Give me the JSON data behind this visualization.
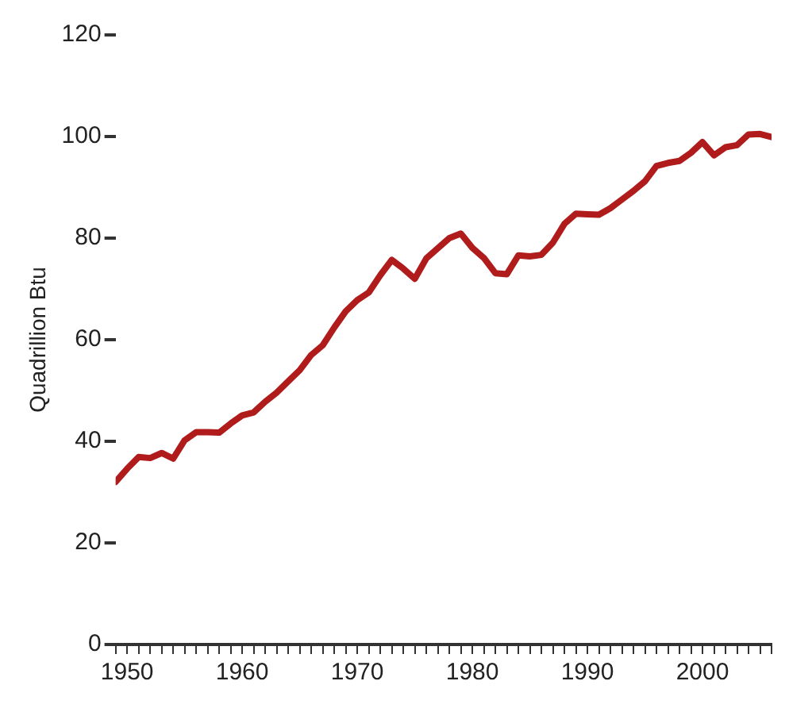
{
  "chart_data": {
    "type": "line",
    "ylabel": "Quadrillion Btu",
    "x": [
      1949,
      1950,
      1951,
      1952,
      1953,
      1954,
      1955,
      1956,
      1957,
      1958,
      1959,
      1960,
      1961,
      1962,
      1963,
      1964,
      1965,
      1966,
      1967,
      1968,
      1969,
      1970,
      1971,
      1972,
      1973,
      1974,
      1975,
      1976,
      1977,
      1978,
      1979,
      1980,
      1981,
      1982,
      1983,
      1984,
      1985,
      1986,
      1987,
      1988,
      1989,
      1990,
      1991,
      1992,
      1993,
      1994,
      1995,
      1996,
      1997,
      1998,
      1999,
      2000,
      2001,
      2002,
      2003,
      2004,
      2005,
      2006
    ],
    "series": [
      {
        "color": "#b01c1c",
        "values": [
          32.0,
          34.6,
          36.9,
          36.7,
          37.7,
          36.6,
          40.2,
          41.8,
          41.8,
          41.7,
          43.5,
          45.1,
          45.7,
          47.8,
          49.6,
          51.8,
          54.0,
          57.0,
          58.9,
          62.4,
          65.6,
          67.8,
          69.3,
          72.7,
          75.7,
          74.0,
          72.0,
          76.0,
          78.0,
          80.0,
          80.9,
          78.1,
          76.1,
          73.1,
          72.9,
          76.6,
          76.4,
          76.7,
          79.1,
          82.8,
          84.8,
          84.7,
          84.6,
          85.9,
          87.6,
          89.3,
          91.2,
          94.2,
          94.8,
          95.2,
          96.8,
          98.9,
          96.3,
          97.9,
          98.3,
          100.4,
          100.5,
          99.9
        ]
      }
    ],
    "xlim": [
      1949,
      2006
    ],
    "xticks": [
      {
        "value": 1949,
        "label": null
      },
      1950,
      {
        "value": 1951,
        "label": null
      },
      {
        "value": 1952,
        "label": null
      },
      {
        "value": 1953,
        "label": null
      },
      {
        "value": 1954,
        "label": null
      },
      {
        "value": 1955,
        "label": null
      },
      {
        "value": 1956,
        "label": null
      },
      {
        "value": 1957,
        "label": null
      },
      {
        "value": 1958,
        "label": null
      },
      {
        "value": 1959,
        "label": null
      },
      1960,
      {
        "value": 1961,
        "label": null
      },
      {
        "value": 1962,
        "label": null
      },
      {
        "value": 1963,
        "label": null
      },
      {
        "value": 1964,
        "label": null
      },
      {
        "value": 1965,
        "label": null
      },
      {
        "value": 1966,
        "label": null
      },
      {
        "value": 1967,
        "label": null
      },
      {
        "value": 1968,
        "label": null
      },
      {
        "value": 1969,
        "label": null
      },
      1970,
      {
        "value": 1971,
        "label": null
      },
      {
        "value": 1972,
        "label": null
      },
      {
        "value": 1973,
        "label": null
      },
      {
        "value": 1974,
        "label": null
      },
      {
        "value": 1975,
        "label": null
      },
      {
        "value": 1976,
        "label": null
      },
      {
        "value": 1977,
        "label": null
      },
      {
        "value": 1978,
        "label": null
      },
      {
        "value": 1979,
        "label": null
      },
      1980,
      {
        "value": 1981,
        "label": null
      },
      {
        "value": 1982,
        "label": null
      },
      {
        "value": 1983,
        "label": null
      },
      {
        "value": 1984,
        "label": null
      },
      {
        "value": 1985,
        "label": null
      },
      {
        "value": 1986,
        "label": null
      },
      {
        "value": 1987,
        "label": null
      },
      {
        "value": 1988,
        "label": null
      },
      {
        "value": 1989,
        "label": null
      },
      1990,
      {
        "value": 1991,
        "label": null
      },
      {
        "value": 1992,
        "label": null
      },
      {
        "value": 1993,
        "label": null
      },
      {
        "value": 1994,
        "label": null
      },
      {
        "value": 1995,
        "label": null
      },
      {
        "value": 1996,
        "label": null
      },
      {
        "value": 1997,
        "label": null
      },
      {
        "value": 1998,
        "label": null
      },
      {
        "value": 1999,
        "label": null
      },
      2000,
      {
        "value": 2001,
        "label": null
      },
      {
        "value": 2002,
        "label": null
      },
      {
        "value": 2003,
        "label": null
      },
      {
        "value": 2004,
        "label": null
      },
      {
        "value": 2005,
        "label": null
      },
      {
        "value": 2006,
        "label": null
      }
    ],
    "ylim": [
      0,
      120
    ],
    "yticks": [
      0,
      20,
      40,
      60,
      80,
      100,
      120
    ],
    "grid": false,
    "legend": false,
    "marker": "none",
    "line_style": "solid"
  }
}
